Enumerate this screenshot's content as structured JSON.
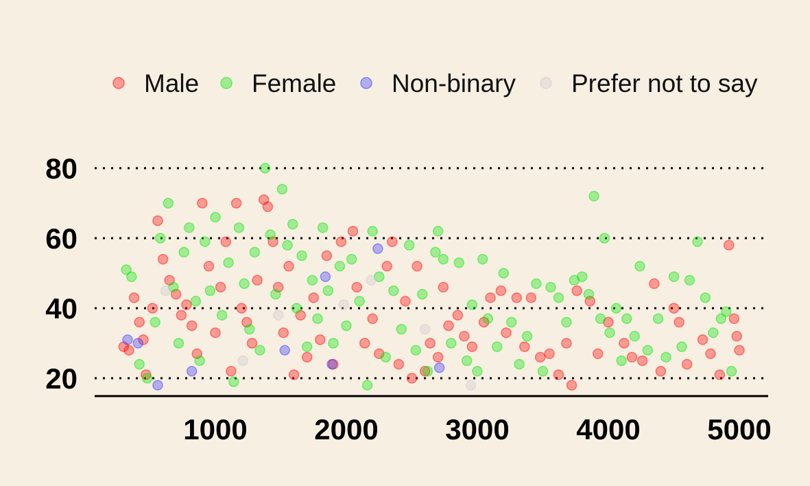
{
  "colors": {
    "background": "#f7efe2",
    "gridline": "#000000",
    "axis": "#000000"
  },
  "chart_data": {
    "type": "scatter",
    "title": "",
    "xlabel": "",
    "ylabel": "",
    "xlim": [
      80,
      5220
    ],
    "ylim": [
      15,
      86
    ],
    "x_ticks": [
      1000,
      2000,
      3000,
      4000,
      5000
    ],
    "y_ticks": [
      20,
      40,
      60,
      80
    ],
    "grid": "horizontal dotted",
    "legend_position": "top",
    "series": [
      {
        "name": "Male",
        "color": "#ff0000",
        "points": [
          [
            300,
            29
          ],
          [
            340,
            28
          ],
          [
            380,
            43
          ],
          [
            420,
            36
          ],
          [
            450,
            31
          ],
          [
            470,
            21
          ],
          [
            520,
            40
          ],
          [
            560,
            65
          ],
          [
            600,
            54
          ],
          [
            650,
            48
          ],
          [
            700,
            44
          ],
          [
            740,
            38
          ],
          [
            780,
            41
          ],
          [
            820,
            35
          ],
          [
            860,
            27
          ],
          [
            900,
            70
          ],
          [
            950,
            52
          ],
          [
            1000,
            33
          ],
          [
            1040,
            46
          ],
          [
            1080,
            59
          ],
          [
            1120,
            22
          ],
          [
            1160,
            70
          ],
          [
            1200,
            40
          ],
          [
            1240,
            36
          ],
          [
            1280,
            30
          ],
          [
            1320,
            48
          ],
          [
            1370,
            71
          ],
          [
            1400,
            69
          ],
          [
            1440,
            59
          ],
          [
            1480,
            46
          ],
          [
            1520,
            33
          ],
          [
            1560,
            52
          ],
          [
            1600,
            21
          ],
          [
            1650,
            38
          ],
          [
            1700,
            26
          ],
          [
            1750,
            43
          ],
          [
            1800,
            31
          ],
          [
            1850,
            55
          ],
          [
            1900,
            24
          ],
          [
            1960,
            59
          ],
          [
            2050,
            62
          ],
          [
            2080,
            46
          ],
          [
            2140,
            30
          ],
          [
            2200,
            37
          ],
          [
            2250,
            27
          ],
          [
            2310,
            52
          ],
          [
            2350,
            59
          ],
          [
            2400,
            24
          ],
          [
            2450,
            42
          ],
          [
            2500,
            20
          ],
          [
            2540,
            52
          ],
          [
            2600,
            22
          ],
          [
            2640,
            30
          ],
          [
            2700,
            26
          ],
          [
            2740,
            46
          ],
          [
            2780,
            35
          ],
          [
            2850,
            38
          ],
          [
            2900,
            32
          ],
          [
            2960,
            29
          ],
          [
            3050,
            36
          ],
          [
            3100,
            43
          ],
          [
            3180,
            45
          ],
          [
            3220,
            33
          ],
          [
            3300,
            43
          ],
          [
            3360,
            29
          ],
          [
            3410,
            43
          ],
          [
            3480,
            26
          ],
          [
            3550,
            27
          ],
          [
            3620,
            21
          ],
          [
            3680,
            30
          ],
          [
            3720,
            18
          ],
          [
            3760,
            45
          ],
          [
            3860,
            42
          ],
          [
            3920,
            27
          ],
          [
            4000,
            36
          ],
          [
            4120,
            30
          ],
          [
            4180,
            26
          ],
          [
            4260,
            25
          ],
          [
            4350,
            47
          ],
          [
            4400,
            22
          ],
          [
            4500,
            40
          ],
          [
            4540,
            36
          ],
          [
            4600,
            24
          ],
          [
            4720,
            31
          ],
          [
            4780,
            27
          ],
          [
            4850,
            21
          ],
          [
            4920,
            58
          ],
          [
            4960,
            37
          ],
          [
            4980,
            32
          ],
          [
            5000,
            28
          ]
        ]
      },
      {
        "name": "Female",
        "color": "#00e600",
        "points": [
          [
            320,
            51
          ],
          [
            360,
            49
          ],
          [
            420,
            24
          ],
          [
            480,
            20
          ],
          [
            540,
            36
          ],
          [
            580,
            60
          ],
          [
            640,
            70
          ],
          [
            680,
            46
          ],
          [
            720,
            30
          ],
          [
            760,
            56
          ],
          [
            800,
            63
          ],
          [
            850,
            42
          ],
          [
            880,
            25
          ],
          [
            920,
            59
          ],
          [
            960,
            45
          ],
          [
            1000,
            66
          ],
          [
            1050,
            38
          ],
          [
            1100,
            53
          ],
          [
            1140,
            19
          ],
          [
            1180,
            63
          ],
          [
            1220,
            47
          ],
          [
            1260,
            34
          ],
          [
            1300,
            56
          ],
          [
            1340,
            28
          ],
          [
            1380,
            80
          ],
          [
            1420,
            61
          ],
          [
            1460,
            44
          ],
          [
            1510,
            74
          ],
          [
            1550,
            58
          ],
          [
            1590,
            64
          ],
          [
            1620,
            40
          ],
          [
            1660,
            55
          ],
          [
            1700,
            29
          ],
          [
            1740,
            48
          ],
          [
            1780,
            37
          ],
          [
            1820,
            63
          ],
          [
            1860,
            45
          ],
          [
            1900,
            30
          ],
          [
            1950,
            52
          ],
          [
            2000,
            35
          ],
          [
            2040,
            54
          ],
          [
            2100,
            42
          ],
          [
            2160,
            18
          ],
          [
            2200,
            62
          ],
          [
            2250,
            49
          ],
          [
            2300,
            26
          ],
          [
            2360,
            45
          ],
          [
            2420,
            34
          ],
          [
            2480,
            58
          ],
          [
            2530,
            28
          ],
          [
            2580,
            44
          ],
          [
            2620,
            22
          ],
          [
            2680,
            56
          ],
          [
            2700,
            62
          ],
          [
            2740,
            54
          ],
          [
            2800,
            30
          ],
          [
            2860,
            53
          ],
          [
            2920,
            25
          ],
          [
            2960,
            41
          ],
          [
            3000,
            22
          ],
          [
            3040,
            54
          ],
          [
            3080,
            37
          ],
          [
            3150,
            29
          ],
          [
            3200,
            50
          ],
          [
            3260,
            36
          ],
          [
            3320,
            24
          ],
          [
            3380,
            32
          ],
          [
            3450,
            47
          ],
          [
            3500,
            22
          ],
          [
            3560,
            46
          ],
          [
            3620,
            43
          ],
          [
            3680,
            36
          ],
          [
            3740,
            48
          ],
          [
            3800,
            49
          ],
          [
            3850,
            44
          ],
          [
            3890,
            72
          ],
          [
            3940,
            37
          ],
          [
            3970,
            60
          ],
          [
            4010,
            33
          ],
          [
            4060,
            40
          ],
          [
            4100,
            25
          ],
          [
            4140,
            37
          ],
          [
            4200,
            32
          ],
          [
            4240,
            52
          ],
          [
            4300,
            28
          ],
          [
            4380,
            37
          ],
          [
            4440,
            26
          ],
          [
            4500,
            49
          ],
          [
            4560,
            29
          ],
          [
            4620,
            48
          ],
          [
            4680,
            59
          ],
          [
            4740,
            43
          ],
          [
            4800,
            33
          ],
          [
            4860,
            37
          ],
          [
            4900,
            39
          ],
          [
            4940,
            22
          ]
        ]
      },
      {
        "name": "Non-binary",
        "color": "#3333ff",
        "points": [
          [
            330,
            31
          ],
          [
            410,
            30
          ],
          [
            560,
            18
          ],
          [
            820,
            22
          ],
          [
            1840,
            49
          ],
          [
            1890,
            24
          ],
          [
            2240,
            57
          ],
          [
            2710,
            23
          ],
          [
            1530,
            28
          ]
        ]
      },
      {
        "name": "Prefer not to say",
        "color": "#cccccc",
        "points": [
          [
            620,
            45
          ],
          [
            1210,
            25
          ],
          [
            1980,
            41
          ],
          [
            2190,
            48
          ],
          [
            2950,
            18
          ],
          [
            1480,
            38
          ],
          [
            2600,
            34
          ]
        ]
      }
    ]
  }
}
